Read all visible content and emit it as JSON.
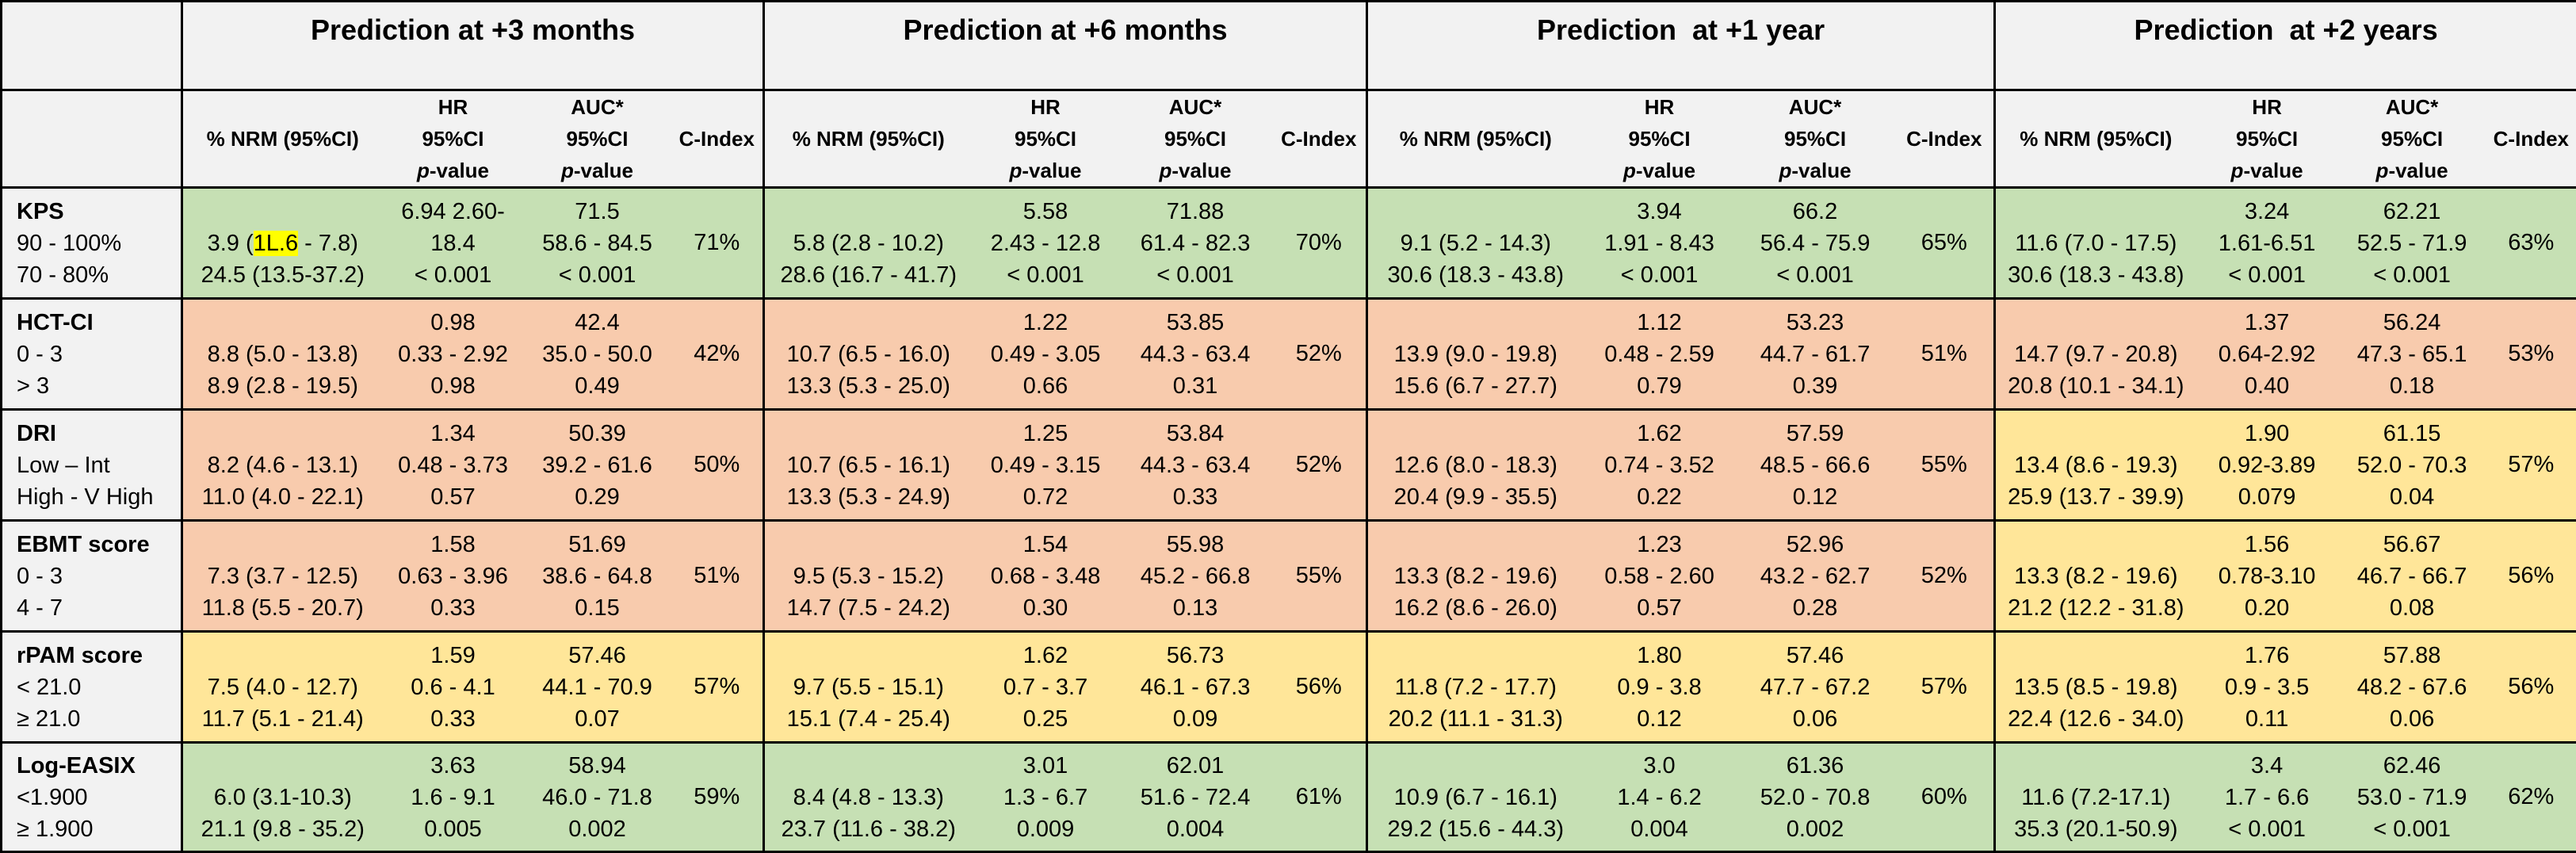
{
  "header": {
    "periods": [
      "Prediction at +3 months",
      "Prediction at +6 months",
      "Prediction  at +1 year",
      "Prediction  at +2 years"
    ],
    "subheader": {
      "nrm": "% NRM (95%CI)",
      "hr": [
        "HR",
        "95%CI",
        "p-value"
      ],
      "auc": [
        "AUC*",
        "95%CI",
        "p-value"
      ],
      "cindex": "C-Index"
    }
  },
  "table": {
    "rows": [
      {
        "label": [
          "KPS",
          "90 - 100%",
          "70 - 80%"
        ],
        "colors": [
          "#c6e0b4",
          "#c6e0b4",
          "#c6e0b4",
          "#c6e0b4"
        ],
        "cells": [
          {
            "nrm": [
              {
                "parts": [
                  "3.9 (",
                  "1L.6",
                  " - 7.8)"
                ],
                "highlight": 1
              },
              "24.5 (13.5-37.2)"
            ],
            "hr": [
              "6.94 2.60-",
              "18.4",
              "< 0.001"
            ],
            "auc": [
              "71.5",
              "58.6 - 84.5",
              "< 0.001"
            ],
            "cindex": "71%"
          },
          {
            "nrm": [
              "5.8 (2.8 - 10.2)",
              "28.6 (16.7 - 41.7)"
            ],
            "hr": [
              "5.58",
              "2.43 - 12.8",
              "< 0.001"
            ],
            "auc": [
              "71.88",
              "61.4 - 82.3",
              "< 0.001"
            ],
            "cindex": "70%"
          },
          {
            "nrm": [
              "9.1 (5.2 - 14.3)",
              "30.6 (18.3 - 43.8)"
            ],
            "hr": [
              "3.94",
              "1.91 - 8.43",
              "< 0.001"
            ],
            "auc": [
              "66.2",
              "56.4 - 75.9",
              "< 0.001"
            ],
            "cindex": "65%"
          },
          {
            "nrm": [
              "11.6 (7.0 - 17.5)",
              "30.6 (18.3 - 43.8)"
            ],
            "hr": [
              "3.24",
              "1.61-6.51",
              "< 0.001"
            ],
            "auc": [
              "62.21",
              "52.5 - 71.9",
              "< 0.001"
            ],
            "cindex": "63%"
          }
        ]
      },
      {
        "label": [
          "HCT-CI",
          "0 - 3",
          "> 3"
        ],
        "colors": [
          "#f8cbad",
          "#f8cbad",
          "#f8cbad",
          "#f8cbad"
        ],
        "cells": [
          {
            "nrm": [
              "8.8 (5.0 - 13.8)",
              "8.9 (2.8 - 19.5)"
            ],
            "hr": [
              "0.98",
              "0.33 - 2.92",
              "0.98"
            ],
            "auc": [
              "42.4",
              "35.0 - 50.0",
              "0.49"
            ],
            "cindex": "42%"
          },
          {
            "nrm": [
              "10.7 (6.5 - 16.0)",
              "13.3 (5.3 - 25.0)"
            ],
            "hr": [
              "1.22",
              "0.49 - 3.05",
              "0.66"
            ],
            "auc": [
              "53.85",
              "44.3 - 63.4",
              "0.31"
            ],
            "cindex": "52%"
          },
          {
            "nrm": [
              "13.9 (9.0 - 19.8)",
              "15.6 (6.7 - 27.7)"
            ],
            "hr": [
              "1.12",
              "0.48 - 2.59",
              "0.79"
            ],
            "auc": [
              "53.23",
              "44.7 - 61.7",
              "0.39"
            ],
            "cindex": "51%"
          },
          {
            "nrm": [
              "14.7 (9.7 - 20.8)",
              "20.8 (10.1 - 34.1)"
            ],
            "hr": [
              "1.37",
              "0.64-2.92",
              "0.40"
            ],
            "auc": [
              "56.24",
              "47.3 - 65.1",
              "0.18"
            ],
            "cindex": "53%"
          }
        ]
      },
      {
        "label": [
          "DRI",
          "Low – Int",
          "High - V High"
        ],
        "colors": [
          "#f8cbad",
          "#f8cbad",
          "#f8cbad",
          "#ffe699"
        ],
        "cells": [
          {
            "nrm": [
              "8.2 (4.6 - 13.1)",
              "11.0 (4.0 - 22.1)"
            ],
            "hr": [
              "1.34",
              "0.48 - 3.73",
              "0.57"
            ],
            "auc": [
              "50.39",
              "39.2 - 61.6",
              "0.29"
            ],
            "cindex": "50%"
          },
          {
            "nrm": [
              "10.7 (6.5 - 16.1)",
              "13.3 (5.3 - 24.9)"
            ],
            "hr": [
              "1.25",
              "0.49 - 3.15",
              "0.72"
            ],
            "auc": [
              "53.84",
              "44.3 - 63.4",
              "0.33"
            ],
            "cindex": "52%"
          },
          {
            "nrm": [
              "12.6 (8.0 - 18.3)",
              "20.4 (9.9 - 35.5)"
            ],
            "hr": [
              "1.62",
              "0.74 - 3.52",
              "0.22"
            ],
            "auc": [
              "57.59",
              "48.5 - 66.6",
              "0.12"
            ],
            "cindex": "55%"
          },
          {
            "nrm": [
              "13.4 (8.6 - 19.3)",
              "25.9 (13.7 - 39.9)"
            ],
            "hr": [
              "1.90",
              "0.92-3.89",
              "0.079"
            ],
            "auc": [
              "61.15",
              "52.0 - 70.3",
              "0.04"
            ],
            "cindex": "57%"
          }
        ]
      },
      {
        "label": [
          "EBMT score",
          "0 - 3",
          "4 - 7"
        ],
        "colors": [
          "#f8cbad",
          "#f8cbad",
          "#f8cbad",
          "#ffe699"
        ],
        "cells": [
          {
            "nrm": [
              "7.3 (3.7 - 12.5)",
              "11.8 (5.5 - 20.7)"
            ],
            "hr": [
              "1.58",
              "0.63 - 3.96",
              "0.33"
            ],
            "auc": [
              "51.69",
              "38.6 - 64.8",
              "0.15"
            ],
            "cindex": "51%"
          },
          {
            "nrm": [
              "9.5 (5.3 - 15.2)",
              "14.7 (7.5 - 24.2)"
            ],
            "hr": [
              "1.54",
              "0.68 - 3.48",
              "0.30"
            ],
            "auc": [
              "55.98",
              "45.2 - 66.8",
              "0.13"
            ],
            "cindex": "55%"
          },
          {
            "nrm": [
              "13.3 (8.2 - 19.6)",
              "16.2 (8.6 - 26.0)"
            ],
            "hr": [
              "1.23",
              "0.58 - 2.60",
              "0.57"
            ],
            "auc": [
              "52.96",
              "43.2 - 62.7",
              "0.28"
            ],
            "cindex": "52%"
          },
          {
            "nrm": [
              "13.3 (8.2 - 19.6)",
              "21.2 (12.2 - 31.8)"
            ],
            "hr": [
              "1.56",
              "0.78-3.10",
              "0.20"
            ],
            "auc": [
              "56.67",
              "46.7 - 66.7",
              "0.08"
            ],
            "cindex": "56%"
          }
        ]
      },
      {
        "label": [
          "rPAM score",
          "< 21.0",
          "≥ 21.0"
        ],
        "colors": [
          "#ffe699",
          "#ffe699",
          "#ffe699",
          "#ffe699"
        ],
        "cells": [
          {
            "nrm": [
              "7.5 (4.0 - 12.7)",
              "11.7 (5.1 - 21.4)"
            ],
            "hr": [
              "1.59",
              "0.6 - 4.1",
              "0.33"
            ],
            "auc": [
              "57.46",
              "44.1 - 70.9",
              "0.07"
            ],
            "cindex": "57%"
          },
          {
            "nrm": [
              "9.7 (5.5 - 15.1)",
              "15.1 (7.4 - 25.4)"
            ],
            "hr": [
              "1.62",
              "0.7 - 3.7",
              "0.25"
            ],
            "auc": [
              "56.73",
              "46.1 - 67.3",
              "0.09"
            ],
            "cindex": "56%"
          },
          {
            "nrm": [
              "11.8 (7.2 - 17.7)",
              "20.2 (11.1 - 31.3)"
            ],
            "hr": [
              "1.80",
              "0.9 - 3.8",
              "0.12"
            ],
            "auc": [
              "57.46",
              "47.7 - 67.2",
              "0.06"
            ],
            "cindex": "57%"
          },
          {
            "nrm": [
              "13.5 (8.5 - 19.8)",
              "22.4 (12.6 - 34.0)"
            ],
            "hr": [
              "1.76",
              "0.9 - 3.5",
              "0.11"
            ],
            "auc": [
              "57.88",
              "48.2 - 67.6",
              "0.06"
            ],
            "cindex": "56%"
          }
        ]
      },
      {
        "label": [
          "Log-EASIX",
          "<1.900",
          "≥ 1.900"
        ],
        "colors": [
          "#c6e0b4",
          "#c6e0b4",
          "#c6e0b4",
          "#c6e0b4"
        ],
        "cells": [
          {
            "nrm": [
              "6.0 (3.1-10.3)",
              "21.1 (9.8 - 35.2)"
            ],
            "hr": [
              "3.63",
              "1.6 - 9.1",
              "0.005"
            ],
            "auc": [
              "58.94",
              "46.0 - 71.8",
              "0.002"
            ],
            "cindex": "59%"
          },
          {
            "nrm": [
              "8.4 (4.8 - 13.3)",
              "23.7 (11.6 - 38.2)"
            ],
            "hr": [
              "3.01",
              "1.3 - 6.7",
              "0.009"
            ],
            "auc": [
              "62.01",
              "51.6 - 72.4",
              "0.004"
            ],
            "cindex": "61%"
          },
          {
            "nrm": [
              "10.9 (6.7 - 16.1)",
              "29.2 (15.6 - 44.3)"
            ],
            "hr": [
              "3.0",
              "1.4 - 6.2",
              "0.004"
            ],
            "auc": [
              "61.36",
              "52.0 - 70.8",
              "0.002"
            ],
            "cindex": "60%"
          },
          {
            "nrm": [
              "11.6 (7.2-17.1)",
              "35.3 (20.1-50.9)"
            ],
            "hr": [
              "3.4",
              "1.7 - 6.6",
              "< 0.001"
            ],
            "auc": [
              "62.46",
              "53.0 - 71.9",
              "< 0.001"
            ],
            "cindex": "62%"
          }
        ]
      }
    ]
  }
}
